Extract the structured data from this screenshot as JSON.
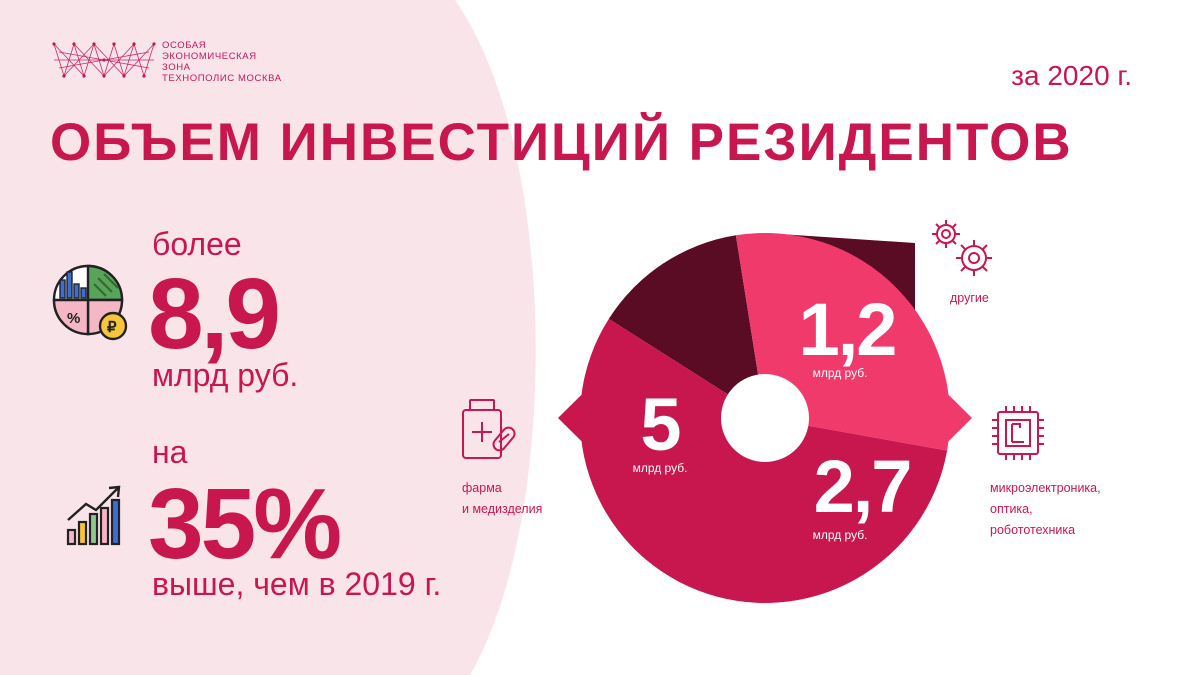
{
  "logo": {
    "lines": [
      "Особая",
      "экономическая",
      "зона",
      "Технополис Москва"
    ]
  },
  "header": {
    "period": "за 2020 г.",
    "title": "ОБЪЕМ ИНВЕСТИЦИЙ РЕЗИДЕНТОВ"
  },
  "stats": {
    "total": {
      "prefix": "более",
      "value": "8,9",
      "suffix": "млрд руб."
    },
    "growth": {
      "prefix": "на",
      "value": "35%",
      "suffix": "выше, чем в 2019 г."
    }
  },
  "chart_data": {
    "type": "pie",
    "series": [
      {
        "label": "фарма и медизделия",
        "value": 5,
        "value_label": "5",
        "unit": "млрд руб.",
        "color": "#c8174f"
      },
      {
        "label": "другие",
        "value": 1.2,
        "value_label": "1,2",
        "unit": "млрд руб.",
        "color": "#5a0c24"
      },
      {
        "label": "микроэлектроника, оптика, робототехника",
        "value": 2.7,
        "value_label": "2,7",
        "unit": "млрд руб.",
        "color": "#f03a6c"
      }
    ]
  },
  "legend": {
    "pharma": [
      "фарма",
      "и медизделия"
    ],
    "other": [
      "другие"
    ],
    "micro": [
      "микроэлектроника,",
      "оптика,",
      "робототехника"
    ]
  },
  "colors": {
    "brand": "#c8174f",
    "dark": "#5a0c24",
    "light": "#f03a6c",
    "panel": "#f9e4ea"
  },
  "icons": {
    "total": "chart-pie-ruble-icon",
    "growth": "growth-bars-icon",
    "pharma": "medicine-bottle-icon",
    "other": "gears-icon",
    "micro": "microchip-icon"
  }
}
